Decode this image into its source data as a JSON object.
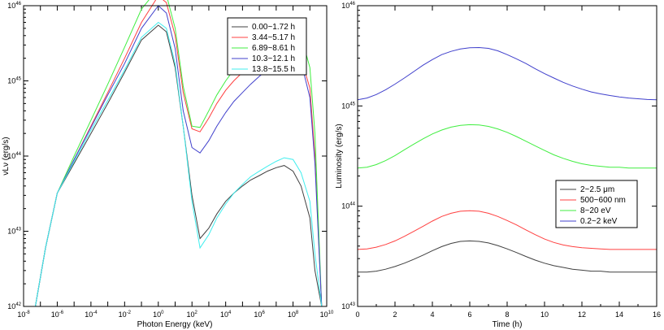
{
  "chart_data": [
    {
      "type": "line",
      "xlabel": "Photon Energy (keV)",
      "ylabel": "νLν (erg/s)",
      "xscale": "log",
      "yscale": "log",
      "xlim": [
        1e-08,
        10000000000.0
      ],
      "ylim": [
        1e+42,
        1e+46
      ],
      "x_ticks": [
        {
          "sup": "-8"
        },
        {
          "sup": "-6"
        },
        {
          "sup": "-4"
        },
        {
          "sup": "-2"
        },
        {
          "sup": "0"
        },
        {
          "sup": "2"
        },
        {
          "sup": "4"
        },
        {
          "sup": "6"
        },
        {
          "sup": "8"
        },
        {
          "sup": "10"
        }
      ],
      "y_ticks": [
        {
          "sup": "42"
        },
        {
          "sup": "43"
        },
        {
          "sup": "44"
        },
        {
          "sup": "45"
        },
        {
          "sup": "46"
        }
      ],
      "tick_base": "10",
      "legend_position": "top-right",
      "grid": false,
      "series": [
        {
          "name": "0.00~1.72 h",
          "color": "#404040",
          "x": [
            5e-08,
            2e-07,
            1e-06,
            1e-05,
            0.0001,
            0.001,
            0.01,
            0.1,
            1,
            3,
            10,
            30,
            100,
            300,
            1000.0,
            3000.0,
            10000.0,
            30000.0,
            100000.0,
            300000.0,
            1000000.0,
            3000000.0,
            10000000.0,
            30000000.0,
            100000000.0,
            300000000.0,
            1000000000.0,
            2000000000.0,
            5000000000.0
          ],
          "y": [
            1e+42,
            6e+42,
            3.2e+43,
            8e+43,
            2e+44,
            5e+44,
            1.3e+45,
            3.5e+45,
            5.5e+45,
            4.5e+45,
            1.5e+45,
            2.5e+44,
            3e+43,
            8e+42,
            1.1e+43,
            1.7e+43,
            2.5e+43,
            3.2e+43,
            4e+43,
            4.8e+43,
            5.5e+43,
            6.3e+43,
            7e+43,
            7.5e+43,
            6.3e+43,
            4e+43,
            1.5e+43,
            3e+42,
            1e+42
          ]
        },
        {
          "name": "3.44~5.17 h",
          "color": "#ff4040",
          "x": [
            5e-08,
            2e-07,
            1e-06,
            1e-05,
            0.0001,
            0.001,
            0.01,
            0.1,
            1,
            3,
            10,
            30,
            100,
            300,
            1000.0,
            3000.0,
            10000.0,
            30000.0,
            100000.0,
            300000.0,
            1000000.0,
            3000000.0,
            10000000.0,
            30000000.0,
            100000000.0,
            300000000.0,
            1000000000.0,
            2000000000.0,
            5000000000.0
          ],
          "y": [
            1e+42,
            6e+42,
            3.2e+43,
            9e+43,
            2.5e+44,
            7e+44,
            2e+45,
            6e+45,
            1.35e+46,
            1.1e+46,
            4e+45,
            7e+44,
            2.3e+44,
            2.1e+44,
            3.2e+44,
            5e+44,
            7.5e+44,
            1e+45,
            1.3e+45,
            1.7e+45,
            2.1e+45,
            2.5e+45,
            2.8e+45,
            3e+45,
            2.8e+45,
            2e+45,
            8e+44,
            1e+44,
            1e+42
          ]
        },
        {
          "name": "6.89~8.61 h",
          "color": "#40ee40",
          "x": [
            5e-08,
            2e-07,
            1e-06,
            1e-05,
            0.0001,
            0.001,
            0.01,
            0.1,
            1,
            3,
            10,
            30,
            100,
            300,
            1000.0,
            3000.0,
            10000.0,
            30000.0,
            100000.0,
            300000.0,
            1000000.0,
            3000000.0,
            10000000.0,
            30000000.0,
            100000000.0,
            300000000.0,
            1000000000.0,
            2000000000.0,
            5000000000.0
          ],
          "y": [
            1e+42,
            6e+42,
            3.2e+43,
            1e+44,
            3e+44,
            9e+44,
            2.8e+45,
            9e+45,
            1.7e+46,
            1.4e+46,
            5e+45,
            8.5e+44,
            2.5e+44,
            2.4e+44,
            4e+44,
            6.5e+44,
            1e+45,
            1.4e+45,
            1.9e+45,
            2.5e+45,
            3.2e+45,
            4e+45,
            4.8e+45,
            5.3e+45,
            5.5e+45,
            4e+45,
            1.5e+45,
            2e+44,
            1e+42
          ]
        },
        {
          "name": "10.3~12.1 h",
          "color": "#4040cc",
          "x": [
            5e-08,
            2e-07,
            1e-06,
            1e-05,
            0.0001,
            0.001,
            0.01,
            0.1,
            1,
            3,
            10,
            30,
            100,
            300,
            1000.0,
            3000.0,
            10000.0,
            30000.0,
            100000.0,
            300000.0,
            1000000.0,
            3000000.0,
            10000000.0,
            30000000.0,
            100000000.0,
            300000000.0,
            1000000000.0,
            2000000000.0,
            5000000000.0
          ],
          "y": [
            1e+42,
            6e+42,
            3.2e+43,
            9e+43,
            2.4e+44,
            6.5e+44,
            1.7e+45,
            5e+45,
            1e+46,
            8e+45,
            2.7e+45,
            4e+44,
            1.3e+44,
            1.1e+44,
            1.6e+44,
            2.5e+44,
            3.8e+44,
            5.3e+44,
            7e+44,
            9e+44,
            1.15e+45,
            1.4e+45,
            1.8e+45,
            2.1e+45,
            2.2e+45,
            1.8e+45,
            6e+44,
            8e+43,
            1e+42
          ]
        },
        {
          "name": "13.8~15.5 h",
          "color": "#40eeee",
          "x": [
            5e-08,
            2e-07,
            1e-06,
            1e-05,
            0.0001,
            0.001,
            0.01,
            0.1,
            1,
            3,
            10,
            30,
            100,
            300,
            1000.0,
            3000.0,
            10000.0,
            30000.0,
            100000.0,
            300000.0,
            1000000.0,
            3000000.0,
            10000000.0,
            30000000.0,
            100000000.0,
            300000000.0,
            1000000000.0,
            2000000000.0,
            5000000000.0
          ],
          "y": [
            1e+42,
            6e+42,
            3.2e+43,
            8.5e+43,
            2.2e+44,
            5.5e+44,
            1.4e+45,
            3.8e+45,
            6e+45,
            5e+45,
            1.7e+45,
            2.5e+44,
            2.5e+43,
            6e+42,
            9e+42,
            1.5e+43,
            2.3e+43,
            3.2e+43,
            4.2e+43,
            5.3e+43,
            6.3e+43,
            7.3e+43,
            8.5e+43,
            9.5e+43,
            9e+43,
            6e+43,
            2.5e+43,
            5e+42,
            1e+42
          ]
        }
      ]
    },
    {
      "type": "line",
      "xlabel": "Time (h)",
      "ylabel": "Luminosity (erg/s)",
      "yscale": "log",
      "xlim": [
        0,
        16
      ],
      "ylim": [
        1e+43,
        1e+46
      ],
      "x_ticks": [
        "0",
        "2",
        "4",
        "6",
        "8",
        "10",
        "12",
        "14",
        "16"
      ],
      "y_ticks": [
        {
          "sup": "43"
        },
        {
          "sup": "44"
        },
        {
          "sup": "45"
        },
        {
          "sup": "46"
        }
      ],
      "tick_base": "10",
      "legend_position": "bottom-right",
      "grid": false,
      "series": [
        {
          "name": "2~2.5 μm",
          "color": "#404040",
          "x": [
            0,
            0.5,
            1,
            1.5,
            2,
            2.5,
            3,
            3.5,
            4,
            4.5,
            5,
            5.5,
            6,
            6.5,
            7,
            7.5,
            8,
            8.5,
            9,
            9.5,
            10,
            10.5,
            11,
            11.5,
            12,
            12.5,
            13,
            13.5,
            14,
            14.5,
            15,
            15.5,
            16
          ],
          "y": [
            2.2e+43,
            2.2e+43,
            2.25e+43,
            2.35e+43,
            2.5e+43,
            2.7e+43,
            2.95e+43,
            3.25e+43,
            3.6e+43,
            3.95e+43,
            4.25e+43,
            4.45e+43,
            4.5e+43,
            4.45e+43,
            4.3e+43,
            4.05e+43,
            3.75e+43,
            3.45e+43,
            3.15e+43,
            2.9e+43,
            2.7e+43,
            2.55e+43,
            2.45e+43,
            2.35e+43,
            2.3e+43,
            2.25e+43,
            2.25e+43,
            2.2e+43,
            2.2e+43,
            2.2e+43,
            2.2e+43,
            2.2e+43,
            2.2e+43
          ]
        },
        {
          "name": "500~600 nm",
          "color": "#ff4040",
          "x": [
            0,
            0.5,
            1,
            1.5,
            2,
            2.5,
            3,
            3.5,
            4,
            4.5,
            5,
            5.5,
            6,
            6.5,
            7,
            7.5,
            8,
            8.5,
            9,
            9.5,
            10,
            10.5,
            11,
            11.5,
            12,
            12.5,
            13,
            13.5,
            14,
            14.5,
            15,
            15.5,
            16
          ],
          "y": [
            3.7e+43,
            3.75e+43,
            3.9e+43,
            4.15e+43,
            4.5e+43,
            5e+43,
            5.6e+43,
            6.3e+43,
            7.1e+43,
            7.9e+43,
            8.5e+43,
            8.9e+43,
            9e+43,
            8.9e+43,
            8.5e+43,
            7.9e+43,
            7.2e+43,
            6.5e+43,
            5.8e+43,
            5.2e+43,
            4.7e+43,
            4.35e+43,
            4.1e+43,
            3.95e+43,
            3.85e+43,
            3.8e+43,
            3.75e+43,
            3.7e+43,
            3.7e+43,
            3.7e+43,
            3.7e+43,
            3.7e+43,
            3.7e+43
          ]
        },
        {
          "name": "8~20 eV",
          "color": "#40ee40",
          "x": [
            0,
            0.5,
            1,
            1.5,
            2,
            2.5,
            3,
            3.5,
            4,
            4.5,
            5,
            5.5,
            6,
            6.5,
            7,
            7.5,
            8,
            8.5,
            9,
            9.5,
            10,
            10.5,
            11,
            11.5,
            12,
            12.5,
            13,
            13.5,
            14,
            14.5,
            15,
            15.5,
            16
          ],
          "y": [
            2.4e+44,
            2.45e+44,
            2.6e+44,
            2.85e+44,
            3.2e+44,
            3.65e+44,
            4.15e+44,
            4.7e+44,
            5.25e+44,
            5.75e+44,
            6.15e+44,
            6.4e+44,
            6.5e+44,
            6.45e+44,
            6.25e+44,
            5.9e+44,
            5.45e+44,
            4.95e+44,
            4.45e+44,
            4e+44,
            3.6e+44,
            3.25e+44,
            3e+44,
            2.8e+44,
            2.65e+44,
            2.55e+44,
            2.5e+44,
            2.45e+44,
            2.45e+44,
            2.4e+44,
            2.4e+44,
            2.4e+44,
            2.4e+44
          ]
        },
        {
          "name": "0.2~2 keV",
          "color": "#4040cc",
          "x": [
            0,
            0.5,
            1,
            1.5,
            2,
            2.5,
            3,
            3.5,
            4,
            4.5,
            5,
            5.5,
            6,
            6.5,
            7,
            7.5,
            8,
            8.5,
            9,
            9.5,
            10,
            10.5,
            11,
            11.5,
            12,
            12.5,
            13,
            13.5,
            14,
            14.5,
            15,
            15.5,
            16
          ],
          "y": [
            1.15e+45,
            1.2e+45,
            1.3e+45,
            1.45e+45,
            1.65e+45,
            1.9e+45,
            2.2e+45,
            2.55e+45,
            2.9e+45,
            3.25e+45,
            3.5e+45,
            3.7e+45,
            3.8e+45,
            3.82e+45,
            3.75e+45,
            3.55e+45,
            3.25e+45,
            2.95e+45,
            2.65e+45,
            2.35e+45,
            2.1e+45,
            1.9e+45,
            1.72e+45,
            1.58e+45,
            1.47e+45,
            1.38e+45,
            1.32e+45,
            1.27e+45,
            1.23e+45,
            1.2e+45,
            1.18e+45,
            1.16e+45,
            1.15e+45
          ]
        }
      ]
    }
  ]
}
